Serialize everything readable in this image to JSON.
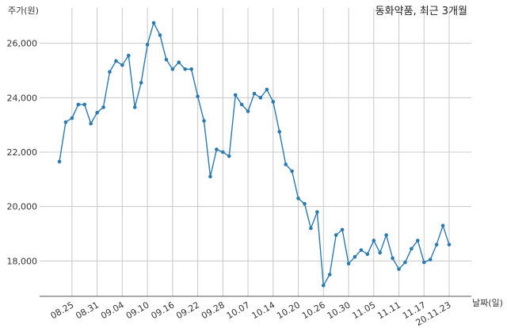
{
  "chart_data": {
    "type": "line",
    "title": "동화약품, 최근 3개월",
    "ylabel": "주가(원)",
    "xlabel": "날짜(일)",
    "ylim": [
      16700,
      27300
    ],
    "yticks": [
      18000,
      20000,
      22000,
      24000,
      26000
    ],
    "ytick_labels": [
      "18,000",
      "20,000",
      "22,000",
      "24,000",
      "26,000"
    ],
    "grid": true,
    "color": "#2a7ab0",
    "xtick_positions": [
      2,
      6,
      10,
      14,
      18,
      22,
      26,
      30,
      34,
      38,
      42,
      46,
      50,
      54,
      58,
      62
    ],
    "xtick_labels": [
      "08.25",
      "08.31",
      "09.04",
      "09.10",
      "09.16",
      "09.22",
      "09.28",
      "10.07",
      "10.14",
      "10.20",
      "10.26",
      "10.30",
      "11.05",
      "11.11",
      "11.17",
      "20.11.23"
    ],
    "series": [
      {
        "values": [
          21650,
          23100,
          23250,
          23750,
          23750,
          23050,
          23450,
          23650,
          24950,
          25350,
          25200,
          25550,
          23650,
          24550,
          25950,
          26750,
          26300,
          25400,
          25050,
          25300,
          25050,
          25050,
          24050,
          23150,
          21100,
          22100,
          22000,
          21850,
          24100,
          23750,
          23500,
          24150,
          24000,
          24300,
          23850,
          22750,
          21550,
          21300,
          20300,
          20100,
          19200,
          19800,
          17100,
          17500,
          18950,
          19150,
          17900,
          18150,
          18400,
          18250,
          18750,
          18300,
          18950,
          18100,
          17700,
          17950,
          18450,
          18750,
          17950,
          18050,
          18600,
          19300,
          18600
        ]
      }
    ]
  }
}
